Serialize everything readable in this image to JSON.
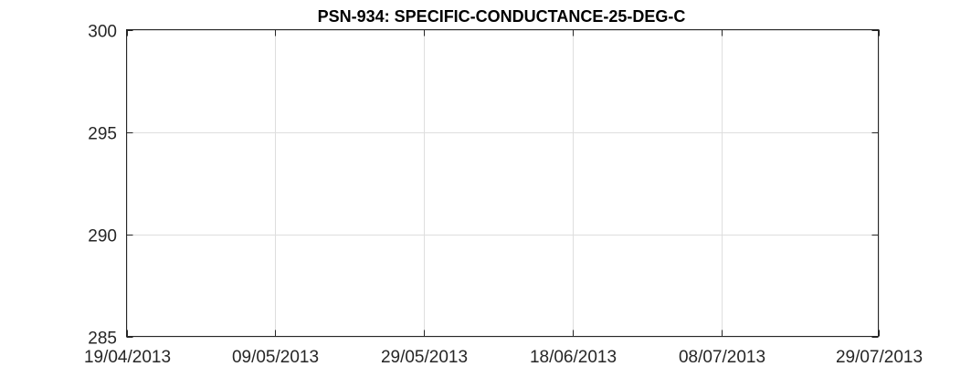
{
  "chart_data": {
    "type": "line",
    "title": "PSN-934: SPECIFIC-CONDUCTANCE-25-DEG-C",
    "xlabel": "",
    "ylabel": "",
    "x_axis_type": "date",
    "xlim": [
      "2013-04-19",
      "2013-07-29"
    ],
    "ylim": [
      285,
      300
    ],
    "x_ticks": [
      "2013-04-19",
      "2013-05-09",
      "2013-05-29",
      "2013-06-18",
      "2013-07-08",
      "2013-07-29"
    ],
    "x_tick_labels": [
      "19/04/2013",
      "09/05/2013",
      "29/05/2013",
      "18/06/2013",
      "08/07/2013",
      "29/07/2013"
    ],
    "y_ticks": [
      285,
      290,
      295,
      300
    ],
    "y_tick_labels": [
      "285",
      "290",
      "295",
      "300"
    ],
    "grid": true,
    "legend": "none",
    "series": []
  }
}
